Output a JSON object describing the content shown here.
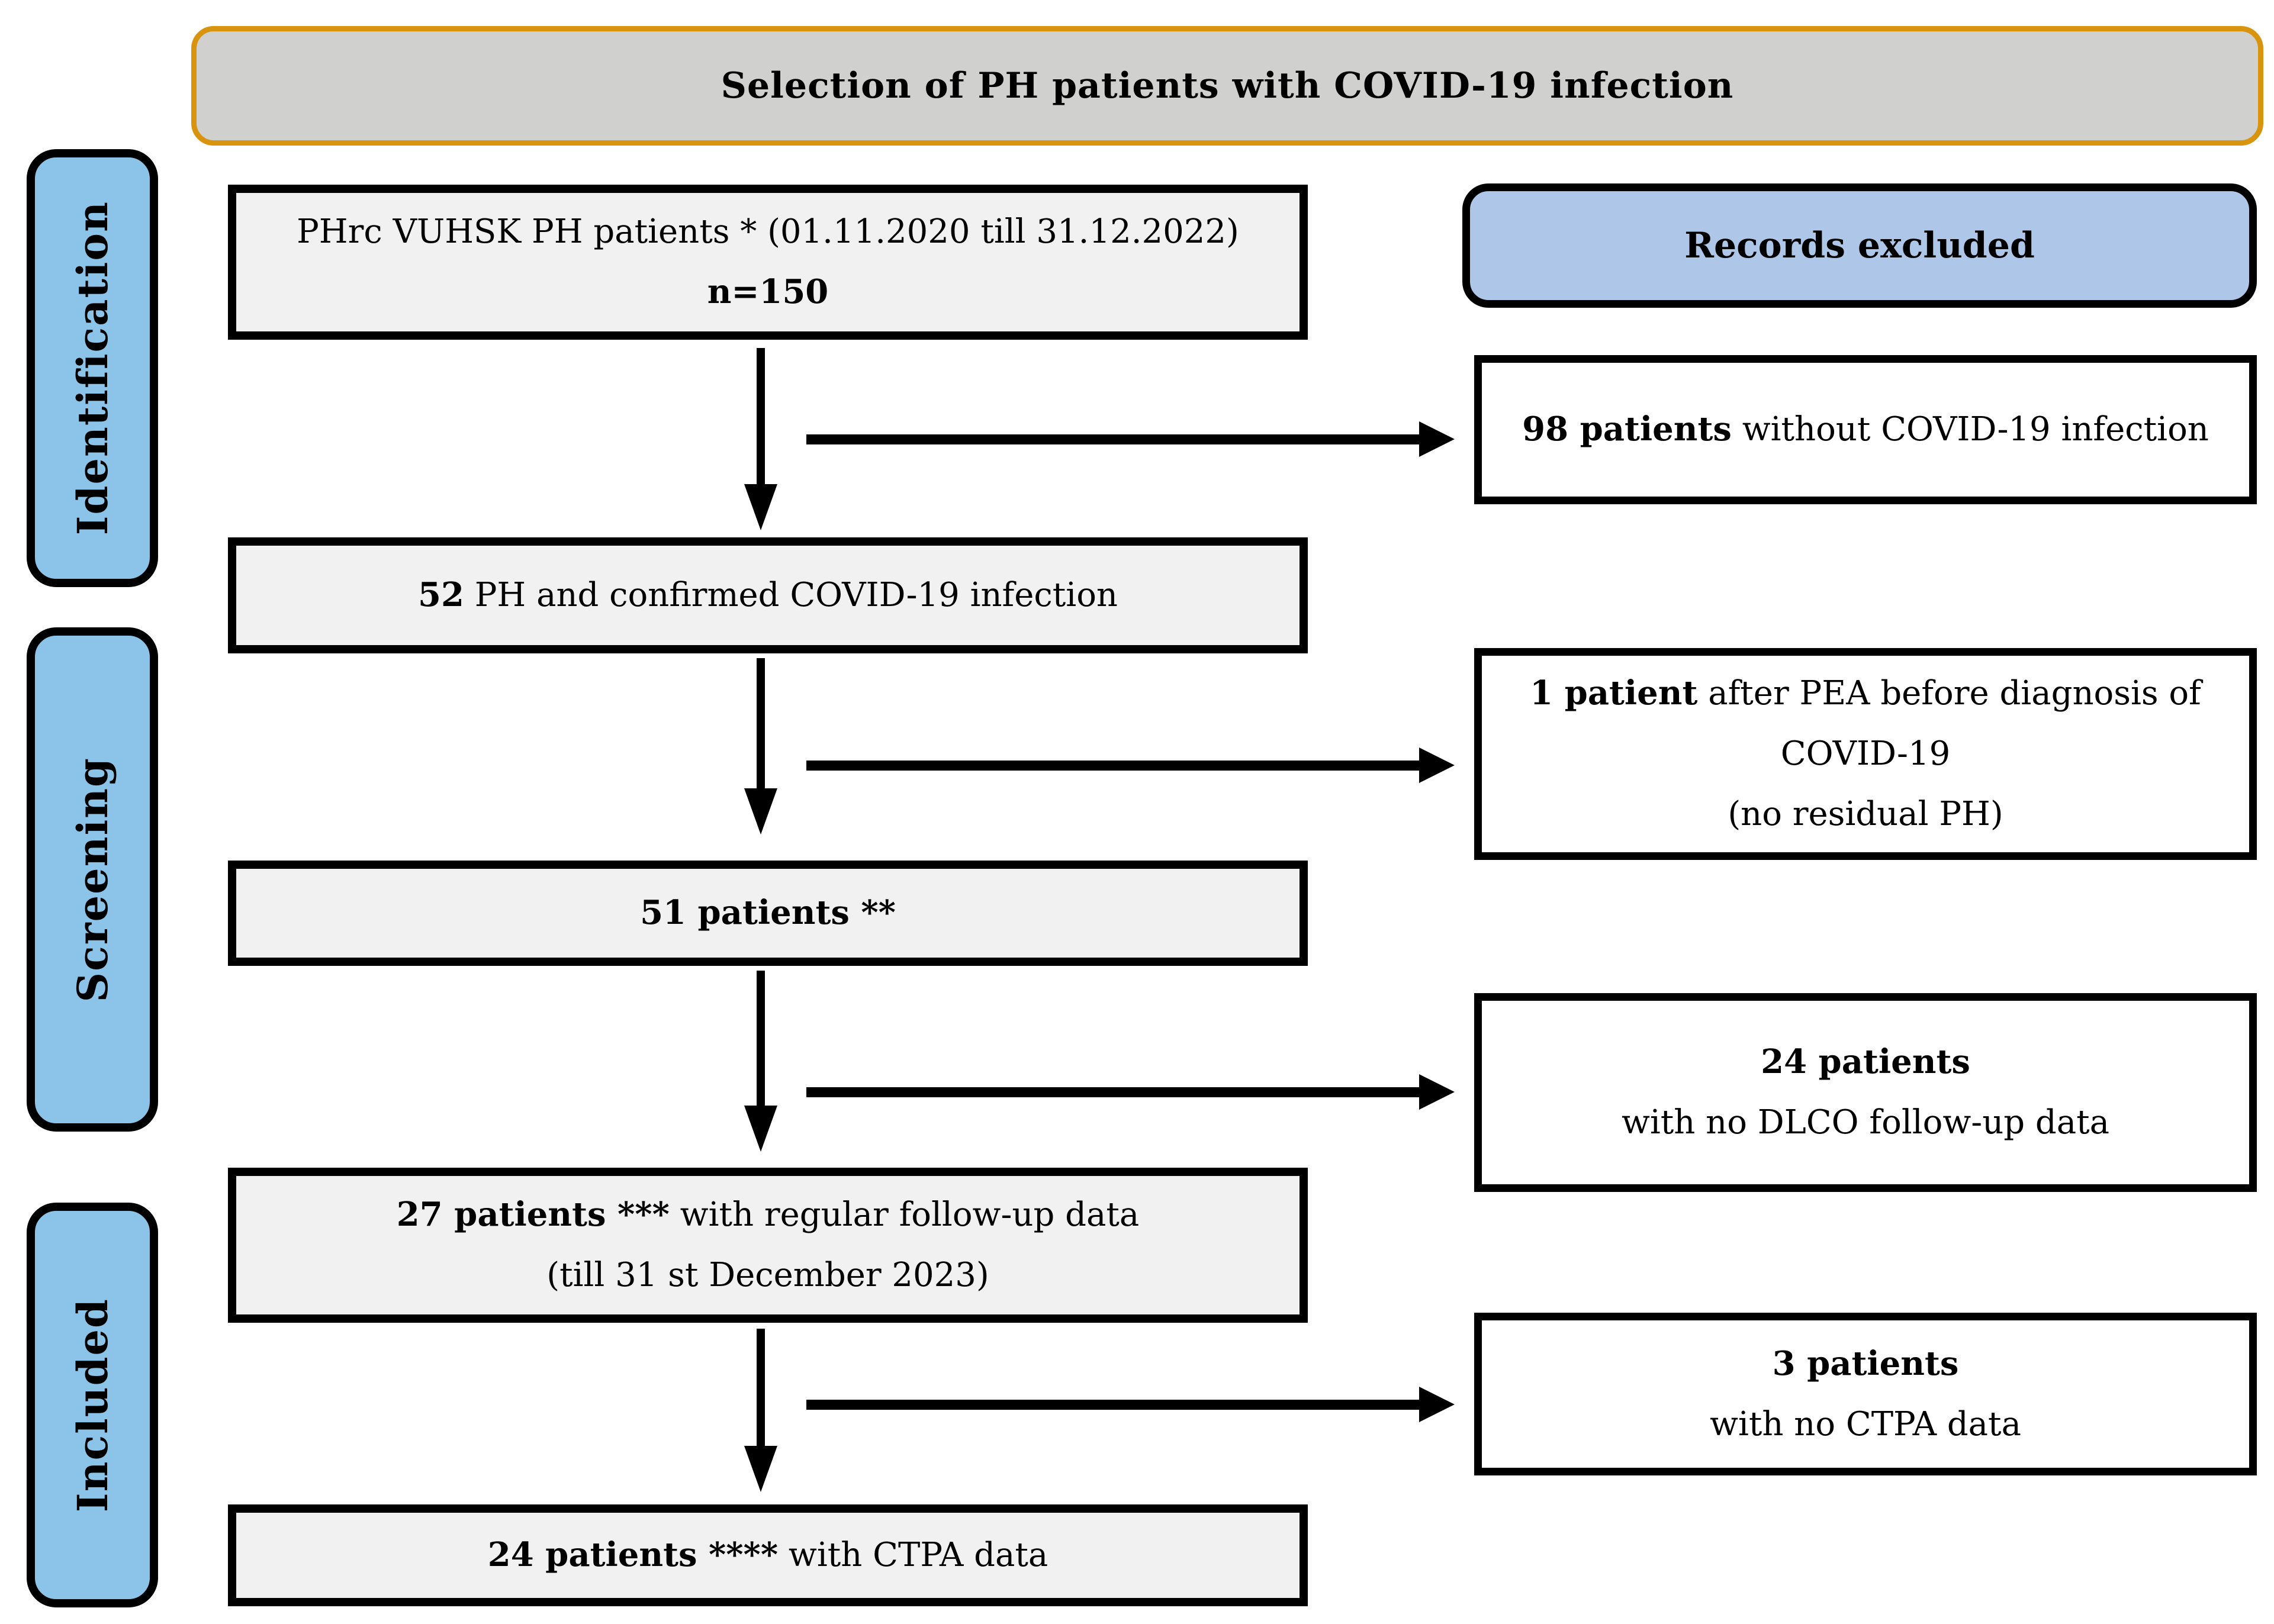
{
  "title": "Selection of PH patients with COVID-19 infection",
  "stages": [
    {
      "label": "Identification"
    },
    {
      "label": "Screening"
    },
    {
      "label": "Included"
    }
  ],
  "flow": [
    {
      "line1": "PHrc VUHSK PH patients * (01.11.2020 till 31.12.2022)",
      "line2_bold": "n=150"
    },
    {
      "bold": "52",
      "rest": " PH and confirmed COVID-19 infection"
    },
    {
      "bold": "51 patients **"
    },
    {
      "bold": "27 patients ***",
      "rest": " with regular follow-up data",
      "line2": "(till 31 st December 2023)"
    },
    {
      "bold": "24 patients ****",
      "rest": " with CTPA data"
    }
  ],
  "excluded": {
    "header": "Records excluded",
    "boxes": [
      {
        "bold": "98 patients",
        "rest": " without COVID-19 infection"
      },
      {
        "bold": "1 patient",
        "rest": " after PEA before diagnosis of",
        "line2": "COVID-19",
        "line3": "(no residual PH)"
      },
      {
        "bold": "24 patients",
        "line2": "with no DLCO follow-up data"
      },
      {
        "bold": "3 patients",
        "line2": "with no CTPA data"
      }
    ]
  },
  "colors": {
    "accent-orange": "#D9940F",
    "title-fill": "#D0D0CE",
    "stage-blue": "#8BC4E8",
    "excluded-blue": "#AEC7E8",
    "box-gray": "#F1F1F1",
    "line-black": "#000000"
  }
}
